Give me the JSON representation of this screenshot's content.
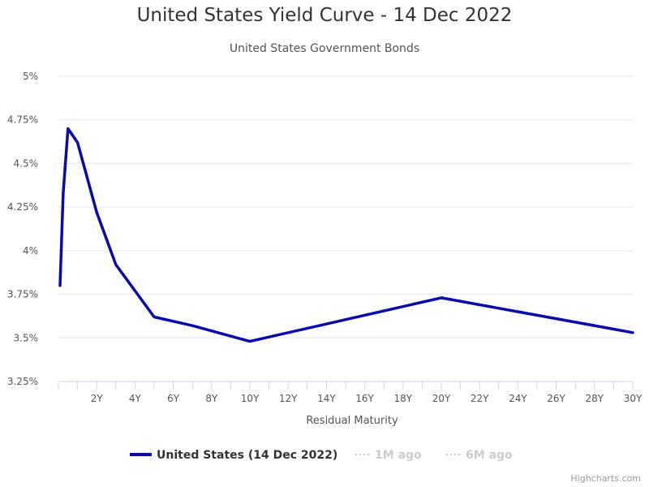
{
  "title": "United States Yield Curve - 14 Dec 2022",
  "subtitle": "United States Government Bonds",
  "credits": "Highcharts.com",
  "chart_data": {
    "type": "line",
    "xlabel": "Residual Maturity",
    "ylabel": "",
    "xlim": [
      0,
      30
    ],
    "ylim": [
      3.25,
      5
    ],
    "x_ticks": [
      2,
      4,
      6,
      8,
      10,
      12,
      14,
      16,
      18,
      20,
      22,
      24,
      26,
      28,
      30
    ],
    "x_tick_labels": [
      "2Y",
      "4Y",
      "6Y",
      "8Y",
      "10Y",
      "12Y",
      "14Y",
      "16Y",
      "18Y",
      "20Y",
      "22Y",
      "24Y",
      "26Y",
      "28Y",
      "30Y"
    ],
    "y_ticks": [
      3.25,
      3.5,
      3.75,
      4,
      4.25,
      4.5,
      4.75,
      5
    ],
    "y_tick_labels": [
      "3.25%",
      "3.5%",
      "3.75%",
      "4%",
      "4.25%",
      "4.5%",
      "4.75%",
      "5%"
    ],
    "grid": "horizontal",
    "legend_position": "bottom-center",
    "series": [
      {
        "name": "United States (14 Dec 2022)",
        "color": "#0a0aab",
        "visible": true,
        "x": [
          0.083,
          0.25,
          0.5,
          1,
          2,
          3,
          5,
          7,
          10,
          20,
          30
        ],
        "y": [
          3.8,
          4.33,
          4.7,
          4.62,
          4.22,
          3.92,
          3.62,
          3.57,
          3.48,
          3.73,
          3.53
        ]
      },
      {
        "name": "1M ago",
        "color": "#cccccc",
        "visible": false,
        "x": [],
        "y": []
      },
      {
        "name": "6M ago",
        "color": "#cccccc",
        "visible": false,
        "x": [],
        "y": []
      }
    ]
  }
}
